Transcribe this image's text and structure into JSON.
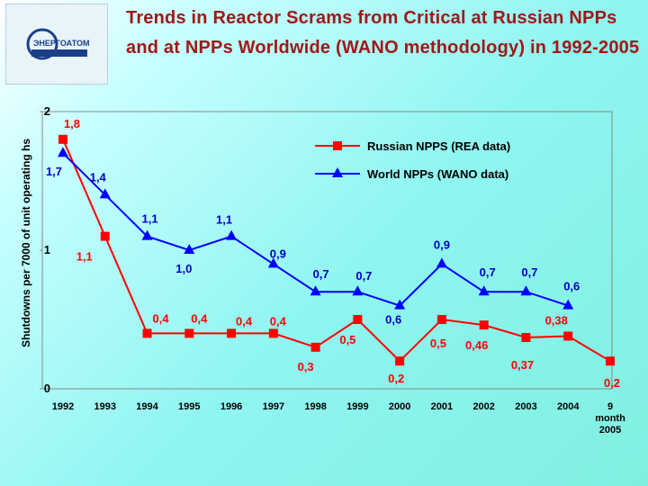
{
  "logo": {
    "text": "ЭНЕРГОАТОМ"
  },
  "chart_data": {
    "type": "line",
    "title": "Trends in Reactor Scrams from Critical at Russian NPPs and at NPPs Worldwide (WANO methodology) in 1992-2005",
    "y_label": "Shutdowns per 7000 of unit operating hs",
    "categories": [
      "1992",
      "1993",
      "1994",
      "1995",
      "1996",
      "1997",
      "1998",
      "1999",
      "2000",
      "2001",
      "2002",
      "2003",
      "2004",
      "9 month 2005"
    ],
    "series": [
      {
        "name": "Russian NPPS (REA data)",
        "color": "#ff0000",
        "marker": "square",
        "values": [
          1.8,
          1.1,
          0.4,
          0.4,
          0.4,
          0.4,
          0.3,
          0.5,
          0.2,
          0.5,
          0.46,
          0.37,
          0.38,
          0.2
        ],
        "value_labels": [
          "1,8",
          "1,1",
          "0,4",
          "0,4",
          "0,4",
          "0,4",
          "0,3",
          "0,5",
          "0,2",
          "0,5",
          "0,46",
          "0,37",
          "0,38",
          "0,2"
        ]
      },
      {
        "name": "World NPPs (WANO data)",
        "color": "#0000ff",
        "marker": "triangle",
        "values": [
          1.7,
          1.4,
          1.1,
          1.0,
          1.1,
          0.9,
          0.7,
          0.7,
          0.6,
          0.9,
          0.7,
          0.7,
          0.6,
          null
        ],
        "value_labels": [
          "1,7",
          "1,4",
          "1,1",
          "1,0",
          "1,1",
          "0,9",
          "0,7",
          "0,7",
          "0,6",
          "0,9",
          "0,7",
          "0,7",
          "0,6",
          null
        ]
      }
    ],
    "ylim": [
      0,
      2
    ],
    "yticks": [
      0,
      1,
      2
    ],
    "grid": false
  }
}
